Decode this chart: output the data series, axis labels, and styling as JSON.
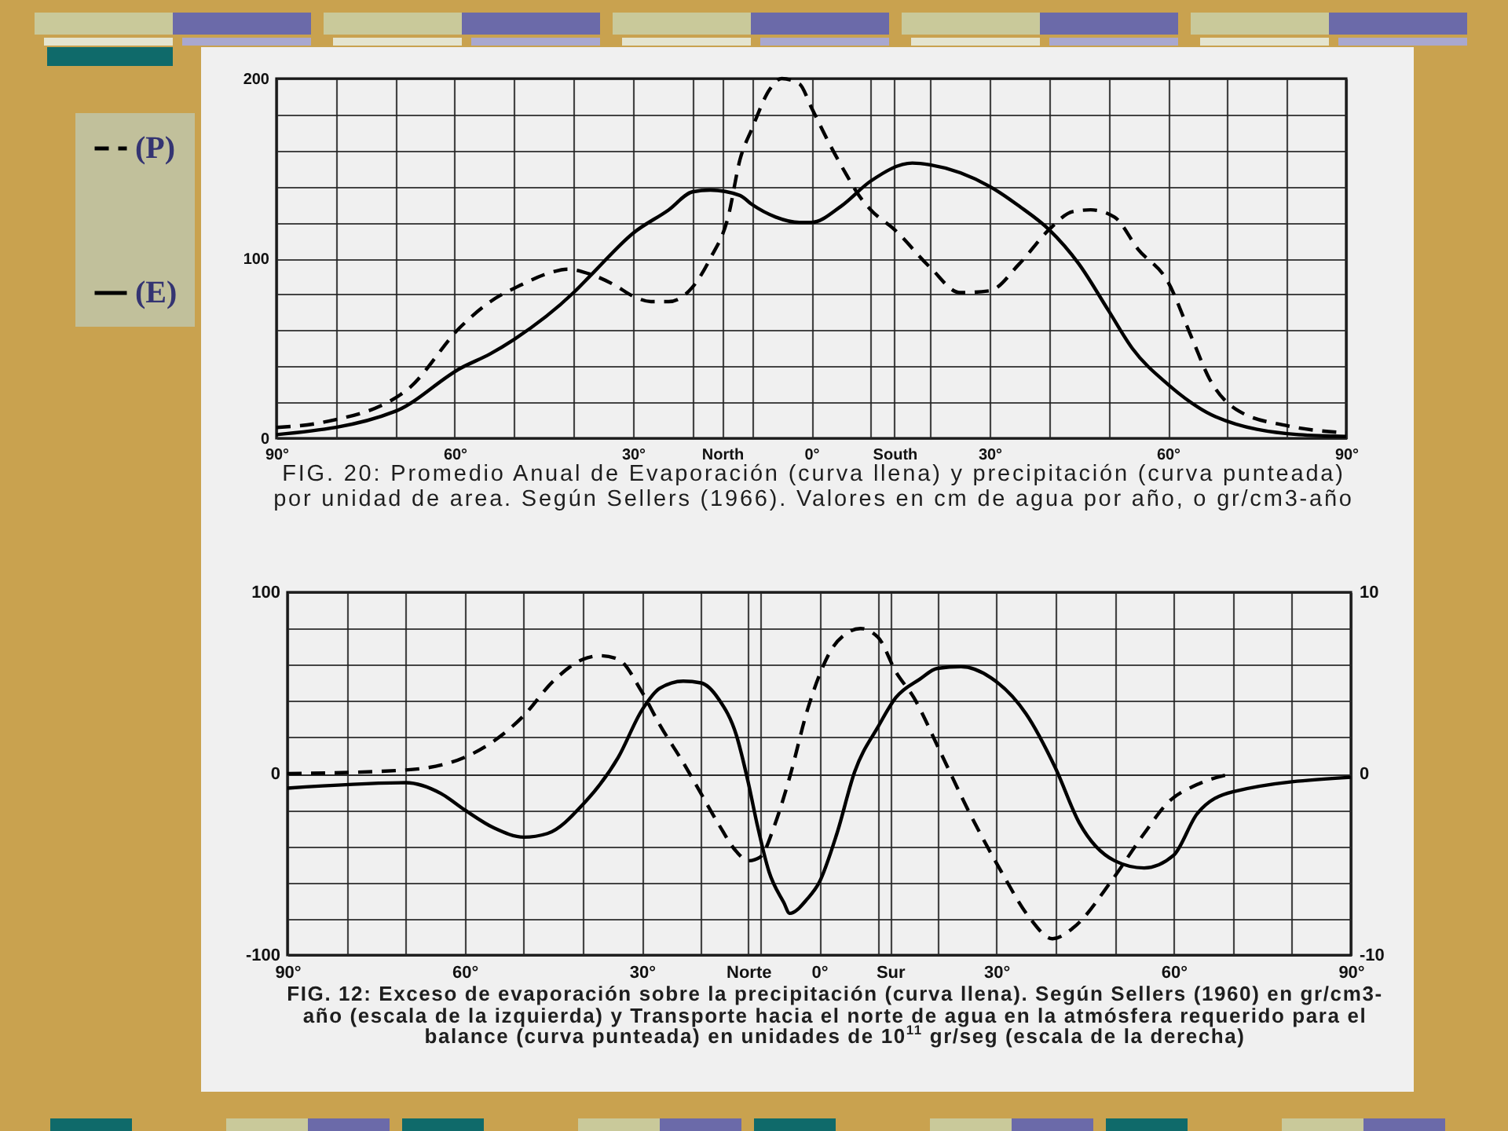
{
  "chart_data": [
    {
      "type": "line",
      "annotations": [
        "FIG. 20: Promedio Anual de Evaporación (curva llena) y precipitación (curva punteada) por unidad de area. Según Sellers (1966). Valores en cm de agua por año, o gr/cm3-año"
      ],
      "xlim": [
        90,
        -90
      ],
      "xticks": [
        {
          "value": 90,
          "label": "90°"
        },
        {
          "value": 80,
          "label": null
        },
        {
          "value": 70,
          "label": null
        },
        {
          "value": 60,
          "label": "60°"
        },
        {
          "value": 50,
          "label": null
        },
        {
          "value": 40,
          "label": null
        },
        {
          "value": 30,
          "label": "30°"
        },
        {
          "value": 20,
          "label": null
        },
        {
          "value": 15,
          "label": "North"
        },
        {
          "value": 10,
          "label": null
        },
        {
          "value": 0,
          "label": "0°"
        },
        {
          "value": -10,
          "label": null
        },
        {
          "value": -14,
          "label": "South"
        },
        {
          "value": -20,
          "label": null
        },
        {
          "value": -30,
          "label": "30°"
        },
        {
          "value": -40,
          "label": null
        },
        {
          "value": -50,
          "label": null
        },
        {
          "value": -60,
          "label": "60°"
        },
        {
          "value": -70,
          "label": null
        },
        {
          "value": -80,
          "label": null
        },
        {
          "value": -90,
          "label": "90°"
        }
      ],
      "ylim": [
        0,
        200
      ],
      "yticks": [
        0,
        {
          "value": 20,
          "label": null
        },
        {
          "value": 40,
          "label": null
        },
        {
          "value": 60,
          "label": null
        },
        {
          "value": 80,
          "label": null
        },
        100,
        {
          "value": 120,
          "label": null
        },
        {
          "value": 140,
          "label": null
        },
        {
          "value": 160,
          "label": null
        },
        {
          "value": 180,
          "label": null
        },
        200
      ],
      "grid": true,
      "legend": "left",
      "series": [
        {
          "name": "(P)",
          "color": "#000000",
          "line_style": "dashed",
          "x": [
            90,
            82,
            68,
            59,
            54,
            49,
            44,
            41,
            37,
            33,
            30,
            27,
            24,
            20,
            17,
            14,
            12,
            10,
            7,
            5,
            2,
            0,
            -3,
            -6,
            -8,
            -10,
            -14,
            -20,
            -25,
            -30,
            -35,
            -40,
            -44,
            -47,
            -51,
            -55,
            -60,
            -64,
            -67,
            -72,
            -80,
            -90
          ],
          "values": [
            6,
            9,
            27,
            62,
            76,
            85,
            92,
            94,
            91,
            85,
            79,
            76,
            76,
            84,
            100,
            123,
            155,
            172,
            194,
            200,
            197,
            184,
            164,
            146,
            135,
            127,
            116,
            95,
            81,
            82,
            97,
            116,
            126,
            127,
            123,
            105,
            87,
            56,
            33,
            15,
            7,
            3
          ]
        },
        {
          "name": "(E)",
          "color": "#000000",
          "line_style": "solid",
          "x": [
            90,
            70,
            59,
            54,
            50,
            40,
            37,
            30,
            24,
            20,
            17,
            12,
            10,
            6,
            2,
            0,
            -5,
            -10,
            -17,
            -20,
            -30,
            -35,
            -40,
            -45,
            -50,
            -54,
            -60,
            -68,
            -82,
            -90
          ],
          "values": [
            2,
            15,
            39,
            47,
            55,
            81,
            91,
            114,
            127,
            137,
            138,
            135,
            130,
            123,
            120,
            120,
            129,
            143,
            153,
            152,
            140,
            129,
            116,
            97,
            71,
            50,
            30,
            12,
            2,
            1
          ]
        }
      ]
    },
    {
      "type": "line",
      "annotations": [
        "FIG. 12: Exceso de evaporación sobre la precipitación (curva llena). Según Sellers (1960) en gr/cm3-año (escala de la izquierda) y Transporte hacia el norte de agua en la atmósfera requerido para el balance (curva punteada) en unidades de 10$^{11}$ gr/seg (escala de la derecha)"
      ],
      "xlim": [
        90,
        -90
      ],
      "xticks": [
        {
          "value": 90,
          "label": "90°"
        },
        {
          "value": 80,
          "label": null
        },
        {
          "value": 70,
          "label": null
        },
        {
          "value": 60,
          "label": "60°"
        },
        {
          "value": 50,
          "label": null
        },
        {
          "value": 40,
          "label": null
        },
        {
          "value": 30,
          "label": "30°"
        },
        {
          "value": 20,
          "label": null
        },
        {
          "value": 12,
          "label": "Norte"
        },
        {
          "value": 10,
          "label": null
        },
        {
          "value": 0,
          "label": "0°"
        },
        {
          "value": -10,
          "label": null
        },
        {
          "value": -12,
          "label": "Sur"
        },
        {
          "value": -20,
          "label": null
        },
        {
          "value": -30,
          "label": "30°"
        },
        {
          "value": -40,
          "label": null
        },
        {
          "value": -50,
          "label": null
        },
        {
          "value": -60,
          "label": "60°"
        },
        {
          "value": -70,
          "label": null
        },
        {
          "value": -80,
          "label": null
        },
        {
          "value": -90,
          "label": "90°"
        }
      ],
      "ylim": [
        -100,
        100
      ],
      "yticks": [
        -100,
        {
          "value": -80,
          "label": null
        },
        {
          "value": -60,
          "label": null
        },
        {
          "value": -40,
          "label": null
        },
        {
          "value": -20,
          "label": null
        },
        0,
        {
          "value": 20,
          "label": null
        },
        {
          "value": 40,
          "label": null
        },
        {
          "value": 60,
          "label": null
        },
        {
          "value": 80,
          "label": null
        },
        100
      ],
      "y2lim": [
        -10,
        10
      ],
      "y2ticks": [
        -10,
        0,
        10
      ],
      "grid": true,
      "series": [
        {
          "color": "#000000",
          "line_style": "solid",
          "x": [
            90,
            70,
            64,
            60,
            55,
            50,
            46,
            40,
            34,
            30,
            27,
            23,
            20,
            17,
            14,
            12,
            10.5,
            8.5,
            6,
            5,
            2,
            0,
            -3,
            -6,
            -10,
            -13,
            -17,
            -20,
            -24,
            -29,
            -35,
            -40,
            -44,
            -50,
            -55,
            -60,
            -64,
            -70,
            -90
          ],
          "values": [
            -8,
            -5,
            -11,
            -20,
            -30,
            -35,
            -33,
            -17,
            9,
            35,
            47,
            51,
            50,
            41,
            21,
            -5,
            -28,
            -54,
            -71,
            -77,
            -69,
            -60,
            -33,
            1,
            26,
            42,
            52,
            58,
            59,
            53,
            33,
            3,
            -27,
            -48,
            -52,
            -45,
            -22,
            -10,
            -2
          ]
        },
        {
          "color": "#000000",
          "line_style": "dashed",
          "axis": "y2",
          "x": [
            90,
            70,
            60,
            50,
            45,
            40,
            37,
            34,
            30,
            27,
            23,
            20,
            17,
            14,
            12,
            10,
            7.5,
            5,
            2,
            0,
            -2,
            -4.5,
            -7,
            -10,
            -13,
            -16,
            -20.5,
            -25.5,
            -31,
            -35.5,
            -39.5,
            -43,
            -49.5,
            -55,
            -59,
            -64,
            -70
          ],
          "values": [
            0,
            0.2,
            0.9,
            3.2,
            5.1,
            6.3,
            6.5,
            6.3,
            4.5,
            2.7,
            0.6,
            -1.1,
            -2.8,
            -4.3,
            -4.8,
            -4.6,
            -2.8,
            -0.2,
            3.5,
            5.4,
            6.8,
            7.7,
            8,
            7.5,
            5.6,
            4.2,
            1.2,
            -2.2,
            -5.5,
            -7.9,
            -9.1,
            -8.5,
            -5.9,
            -3.3,
            -1.6,
            -0.6,
            0
          ]
        }
      ]
    }
  ]
}
